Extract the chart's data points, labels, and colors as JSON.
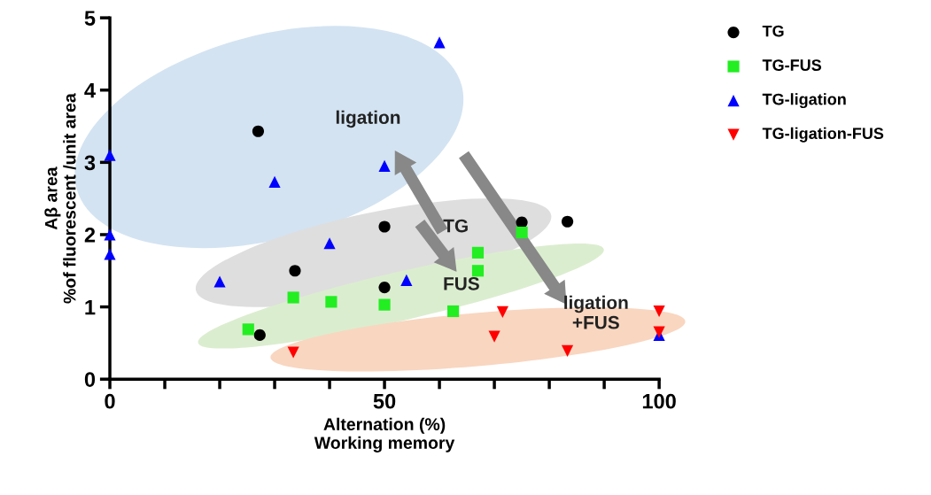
{
  "chart_data": {
    "type": "scatter",
    "xlabel": "Alternation (%)\nWorking memory",
    "ylabel": "Aβ area\n%of fluorescent /unit area",
    "xlim": [
      0,
      100
    ],
    "ylim": [
      0,
      5
    ],
    "xticks": [
      0,
      {
        "value": 10,
        "label": null
      },
      {
        "value": 20,
        "label": null
      },
      {
        "value": 30,
        "label": null
      },
      {
        "value": 40,
        "label": null
      },
      50,
      {
        "value": 60,
        "label": null
      },
      {
        "value": 70,
        "label": null
      },
      {
        "value": 80,
        "label": null
      },
      {
        "value": 90,
        "label": null
      },
      100
    ],
    "yticks": [
      0,
      1,
      2,
      3,
      4,
      5
    ],
    "grid": false,
    "legend": "top right",
    "series": [
      {
        "name": "TG",
        "color": "#000000",
        "marker": "circle",
        "x": [
          27,
          33.7,
          50,
          50,
          27.3,
          75,
          83.3
        ],
        "values": [
          3.43,
          1.5,
          2.11,
          1.27,
          0.61,
          2.17,
          2.18
        ]
      },
      {
        "name": "TG-FUS",
        "color": "#22ee22",
        "marker": "square",
        "x": [
          25.2,
          33.4,
          40.3,
          50,
          62.5,
          67,
          67,
          75
        ],
        "values": [
          0.69,
          1.13,
          1.07,
          1.03,
          0.94,
          1.75,
          1.5,
          2.03
        ]
      },
      {
        "name": "TG-ligation",
        "color": "#0000ff",
        "marker": "triangle",
        "x": [
          0,
          0,
          0,
          20,
          30,
          40,
          50,
          60,
          54,
          100
        ],
        "values": [
          3.1,
          2.0,
          1.73,
          1.35,
          2.73,
          1.88,
          2.95,
          4.66,
          1.37,
          0.61
        ]
      },
      {
        "name": "TG-ligation-FUS",
        "color": "#ff0000",
        "marker": "triangle_down",
        "x": [
          33.4,
          71.5,
          70,
          83.3,
          100,
          100
        ],
        "values": [
          0.37,
          0.93,
          0.59,
          0.39,
          0.94,
          0.65
        ]
      }
    ],
    "annotations": [
      "ligation",
      "TG",
      "FUS",
      "ligation\n+FUS"
    ]
  }
}
